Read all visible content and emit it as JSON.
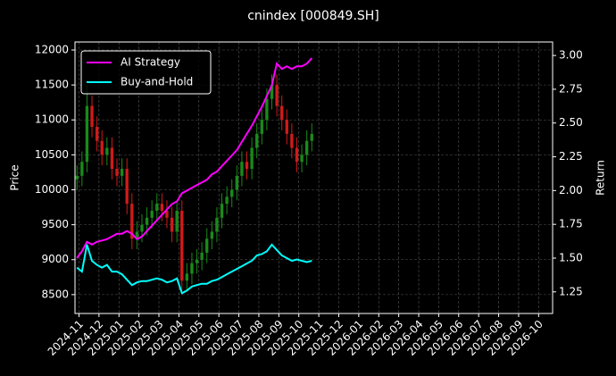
{
  "chart_data": {
    "type": "candlestick",
    "title": "cnindex [000849.SH]",
    "ylabel": "Price",
    "y2label": "Return",
    "grid": true,
    "legend": "upper left",
    "up_color": "#1a8a1a",
    "down_color": "#d01a1a",
    "xlim": [
      -0.2,
      23.7
    ],
    "xticks": [
      {
        "value": 0,
        "label": "2024-11"
      },
      {
        "value": 1,
        "label": "2024-12"
      },
      {
        "value": 2,
        "label": "2025-01"
      },
      {
        "value": 3,
        "label": "2025-02"
      },
      {
        "value": 4,
        "label": "2025-03"
      },
      {
        "value": 5,
        "label": "2025-04"
      },
      {
        "value": 6,
        "label": "2025-05"
      },
      {
        "value": 7,
        "label": "2025-06"
      },
      {
        "value": 8,
        "label": "2025-07"
      },
      {
        "value": 9,
        "label": "2025-08"
      },
      {
        "value": 10,
        "label": "2025-09"
      },
      {
        "value": 11,
        "label": "2025-10"
      },
      {
        "value": 12,
        "label": "2025-11"
      },
      {
        "value": 13,
        "label": "2025-12"
      },
      {
        "value": 14,
        "label": "2026-01"
      },
      {
        "value": 15,
        "label": "2026-02"
      },
      {
        "value": 16,
        "label": "2026-03"
      },
      {
        "value": 17,
        "label": "2026-04"
      },
      {
        "value": 18,
        "label": "2026-05"
      },
      {
        "value": 19,
        "label": "2026-06"
      },
      {
        "value": 20,
        "label": "2026-07"
      },
      {
        "value": 21,
        "label": "2026-08"
      },
      {
        "value": 22,
        "label": "2026-09"
      },
      {
        "value": 23,
        "label": "2026-10"
      }
    ],
    "ylim": [
      8230,
      12115
    ],
    "yticks": [
      8500,
      9000,
      9500,
      10000,
      10500,
      11000,
      11500,
      12000
    ],
    "y2lim": [
      1.09,
      3.1
    ],
    "y2ticks": [
      {
        "value": 1.25,
        "label": "1.25"
      },
      {
        "value": 1.5,
        "label": "1.50"
      },
      {
        "value": 1.75,
        "label": "1.75"
      },
      {
        "value": 2,
        "label": "2.00"
      },
      {
        "value": 2.25,
        "label": "2.25"
      },
      {
        "value": 2.5,
        "label": "2.50"
      },
      {
        "value": 2.75,
        "label": "2.75"
      },
      {
        "value": 3,
        "label": "3.00"
      }
    ],
    "x": [
      -0.1,
      0.15,
      0.4,
      0.65,
      0.9,
      1.15,
      1.4,
      1.65,
      1.9,
      2.15,
      2.4,
      2.65,
      2.9,
      3.15,
      3.4,
      3.65,
      3.9,
      4.15,
      4.4,
      4.65,
      4.9,
      5.15,
      5.4,
      5.65,
      5.9,
      6.15,
      6.4,
      6.65,
      6.9,
      7.15,
      7.4,
      7.65,
      7.9,
      8.15,
      8.4,
      8.65,
      8.9,
      9.15,
      9.4,
      9.65,
      9.9,
      10.15,
      10.4,
      10.65,
      10.9,
      11.15,
      11.4,
      11.65
    ],
    "open": [
      10150,
      10200,
      10400,
      11200,
      10900,
      10700,
      10500,
      10600,
      10300,
      10200,
      10300,
      9800,
      9300,
      9400,
      9500,
      9600,
      9700,
      9800,
      9700,
      9600,
      9400,
      9700,
      8700,
      8800,
      8950,
      9000,
      9100,
      9300,
      9400,
      9600,
      9800,
      9900,
      10000,
      10200,
      10400,
      10300,
      10600,
      10800,
      11000,
      11300,
      11500,
      11200,
      11000,
      10800,
      10600,
      10400,
      10500,
      10700
    ],
    "high": [
      10350,
      10550,
      11500,
      11350,
      11050,
      10850,
      10750,
      10750,
      10450,
      10450,
      10450,
      9950,
      9550,
      9650,
      9750,
      9850,
      9950,
      9950,
      9850,
      9750,
      9850,
      9850,
      8950,
      9100,
      9150,
      9250,
      9450,
      9550,
      9750,
      9950,
      10050,
      10150,
      10350,
      10550,
      10550,
      10750,
      10950,
      11150,
      11450,
      11650,
      11650,
      11350,
      11150,
      10950,
      10750,
      10650,
      10850,
      10950
    ],
    "low": [
      10000,
      10050,
      10250,
      10750,
      10550,
      10350,
      10350,
      10150,
      10050,
      10050,
      9650,
      9150,
      9150,
      9250,
      9350,
      9450,
      9550,
      9550,
      9450,
      9250,
      9250,
      8550,
      8550,
      8650,
      8800,
      8850,
      8950,
      9150,
      9250,
      9450,
      9650,
      9750,
      9850,
      10050,
      10150,
      10150,
      10450,
      10650,
      10850,
      11150,
      11050,
      10850,
      10650,
      10450,
      10250,
      10250,
      10350,
      10550
    ],
    "close": [
      10200,
      10400,
      11200,
      10900,
      10700,
      10500,
      10600,
      10300,
      10200,
      10300,
      9800,
      9300,
      9400,
      9500,
      9600,
      9700,
      9800,
      9700,
      9600,
      9400,
      9700,
      8700,
      8800,
      8950,
      9000,
      9100,
      9300,
      9400,
      9600,
      9800,
      9900,
      10000,
      10200,
      10400,
      10300,
      10600,
      10800,
      11000,
      11300,
      11500,
      11200,
      11000,
      10800,
      10600,
      10400,
      10500,
      10700,
      10800
    ],
    "series": [
      {
        "name": "AI Strategy",
        "color": "#ff00ff",
        "axis": "y2",
        "values": [
          1.5,
          1.55,
          1.62,
          1.6,
          1.62,
          1.63,
          1.64,
          1.66,
          1.68,
          1.68,
          1.7,
          1.68,
          1.64,
          1.66,
          1.7,
          1.74,
          1.78,
          1.82,
          1.86,
          1.9,
          1.92,
          1.98,
          2,
          2.02,
          2.04,
          2.06,
          2.08,
          2.12,
          2.14,
          2.18,
          2.22,
          2.26,
          2.3,
          2.36,
          2.42,
          2.48,
          2.55,
          2.62,
          2.7,
          2.78,
          2.94,
          2.9,
          2.92,
          2.9,
          2.92,
          2.92,
          2.94,
          2.98
        ]
      },
      {
        "name": "Buy-and-Hold",
        "color": "#00ffff",
        "axis": "y2",
        "values": [
          1.43,
          1.4,
          1.6,
          1.48,
          1.45,
          1.43,
          1.45,
          1.4,
          1.4,
          1.38,
          1.34,
          1.3,
          1.32,
          1.33,
          1.33,
          1.34,
          1.35,
          1.34,
          1.32,
          1.33,
          1.35,
          1.24,
          1.26,
          1.29,
          1.3,
          1.31,
          1.31,
          1.33,
          1.34,
          1.36,
          1.38,
          1.4,
          1.42,
          1.44,
          1.46,
          1.48,
          1.52,
          1.53,
          1.55,
          1.6,
          1.56,
          1.52,
          1.5,
          1.48,
          1.49,
          1.48,
          1.47,
          1.48
        ]
      }
    ]
  }
}
